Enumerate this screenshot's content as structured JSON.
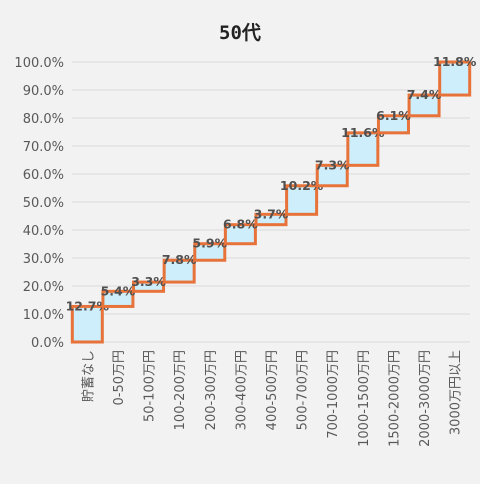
{
  "chart_data": {
    "type": "bar",
    "subtype": "waterfall-cumulative",
    "title": "50代",
    "categories": [
      "貯蓄なし",
      "0-50万円",
      "50-100万円",
      "100-200万円",
      "200-300万円",
      "300-400万円",
      "400-500万円",
      "500-700万円",
      "700-1000万円",
      "1000-1500万円",
      "1500-2000万円",
      "2000-3000万円",
      "3000万円以上"
    ],
    "values": [
      12.7,
      5.4,
      3.3,
      7.8,
      5.9,
      6.8,
      3.7,
      10.2,
      7.3,
      11.6,
      6.1,
      7.4,
      11.8
    ],
    "value_labels": [
      "12.7%",
      "5.4%",
      "3.3%",
      "7.8%",
      "5.9%",
      "6.8%",
      "3.7%",
      "10.2%",
      "7.3%",
      "11.6%",
      "6.1%",
      "7.4%",
      "11.8%"
    ],
    "ylim": [
      0,
      100
    ],
    "yticks": [
      "0.0%",
      "10.0%",
      "20.0%",
      "30.0%",
      "40.0%",
      "50.0%",
      "60.0%",
      "70.0%",
      "80.0%",
      "90.0%",
      "100.0%"
    ],
    "grid": true,
    "colors": {
      "fill": "#cdeefa",
      "border": "#e8733a",
      "label": "#505050",
      "grid": "#dadada",
      "tick": "#595959"
    }
  }
}
